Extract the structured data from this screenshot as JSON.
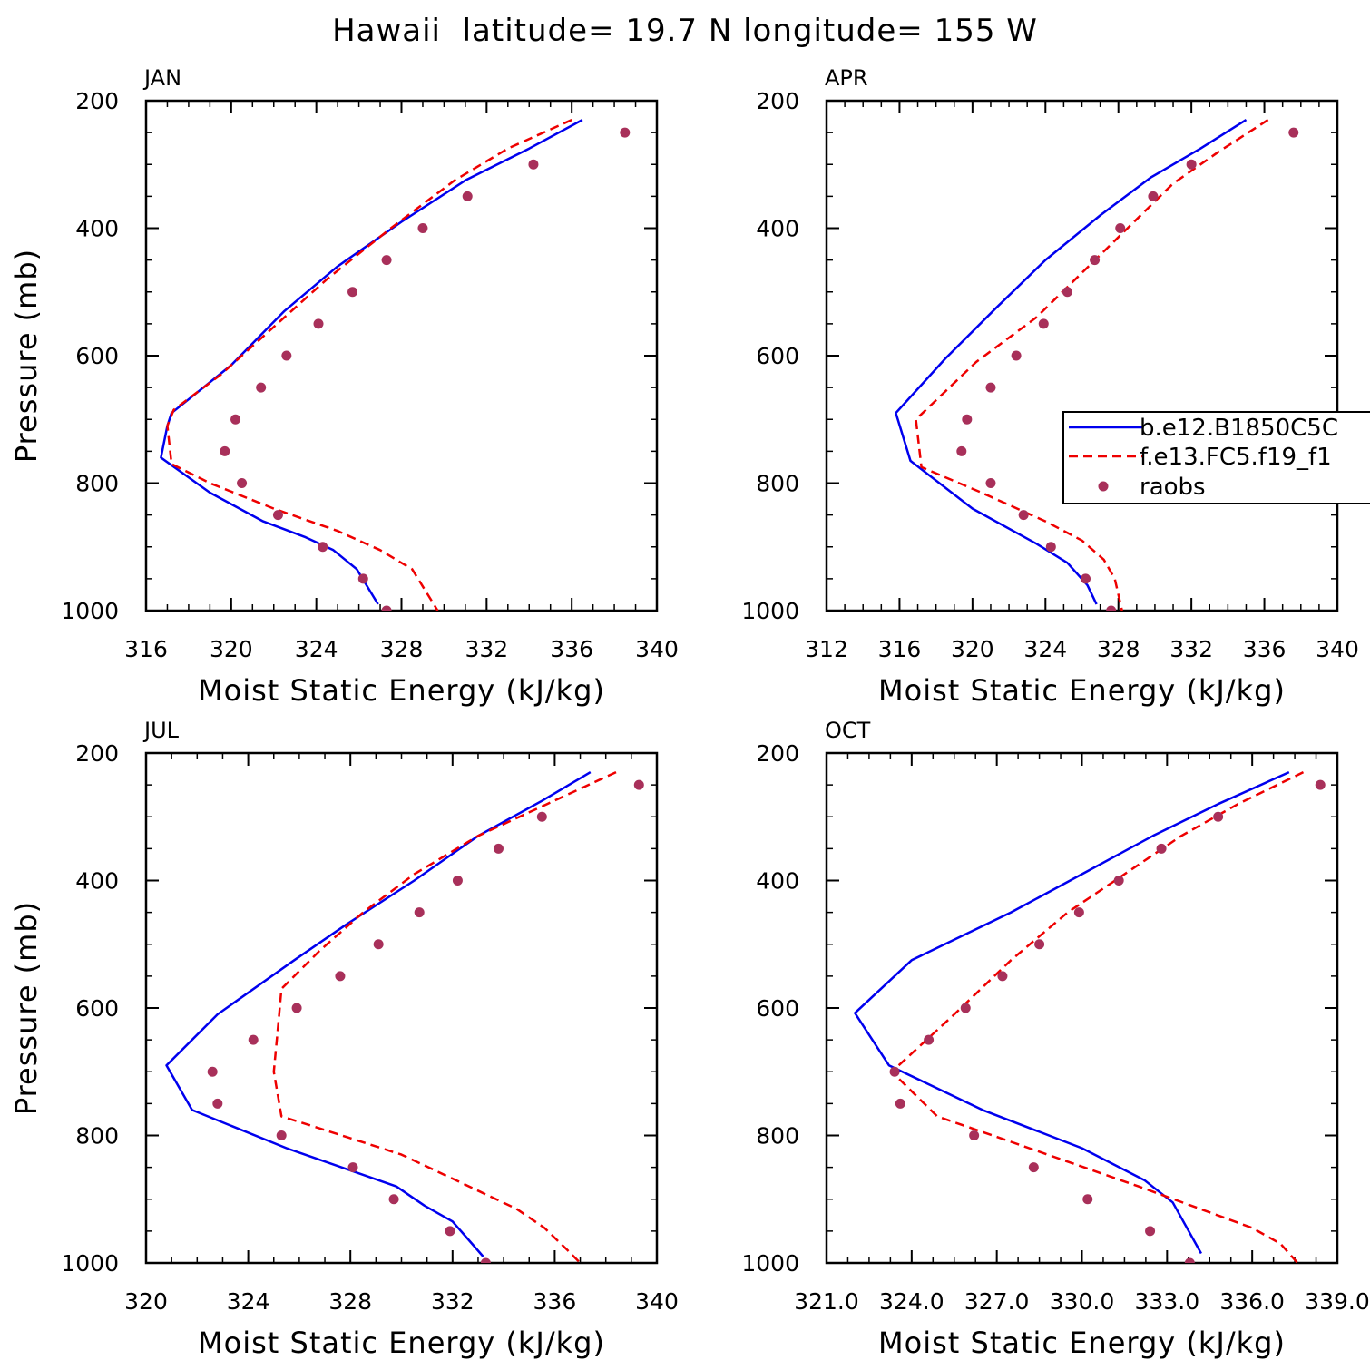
{
  "figure_title": "Hawaii  latitude= 19.7 N longitude= 155 W",
  "legend_entries": [
    "b.e12.B1850C5C",
    "f.e13.FC5.f19_f1",
    "raobs"
  ],
  "colors": {
    "model_b": "#0000ee",
    "model_f": "#ee0000",
    "raobs": "#a8305a"
  },
  "chart_data": [
    {
      "type": "line",
      "title": "JAN",
      "xlabel": "Moist Static Energy (kJ/kg)",
      "ylabel": "Pressure (mb)",
      "xlim": [
        316,
        340
      ],
      "ylim": [
        1000,
        200
      ],
      "xticks": [
        316,
        320,
        324,
        328,
        332,
        336,
        340
      ],
      "xtick_labels": [
        "316",
        "320",
        "324",
        "328",
        "332",
        "336",
        "340"
      ],
      "xminor": 1,
      "yticks": [
        200,
        400,
        600,
        800,
        1000
      ],
      "ytick_labels": [
        "200",
        "400",
        "600",
        "800",
        "1000"
      ],
      "yminor": 50,
      "legend": false,
      "series": [
        {
          "name": "b.e12.B1850C5C",
          "style": "solid",
          "x": [
            336.5,
            334.0,
            331.0,
            328.0,
            325.0,
            322.5,
            320.0,
            317.2,
            317.0,
            316.7,
            319.0,
            321.5,
            323.5,
            324.8,
            325.9,
            326.9
          ],
          "y": [
            230,
            275,
            325,
            390,
            460,
            530,
            615,
            690,
            710,
            760,
            815,
            860,
            885,
            905,
            935,
            990
          ]
        },
        {
          "name": "f.e13.FC5.f19_f1",
          "style": "dashed",
          "x": [
            336.0,
            333.0,
            330.5,
            327.5,
            324.5,
            321.5,
            319.5,
            317.3,
            317.0,
            317.2,
            319.0,
            322.0,
            325.0,
            327.0,
            328.5,
            329.7
          ],
          "y": [
            230,
            275,
            325,
            400,
            480,
            570,
            630,
            685,
            710,
            770,
            800,
            840,
            875,
            905,
            935,
            1000
          ]
        },
        {
          "name": "raobs",
          "style": "markers",
          "x": [
            338.5,
            334.2,
            331.1,
            329.0,
            327.3,
            325.7,
            324.1,
            322.6,
            321.4,
            320.2,
            319.7,
            320.5,
            322.2,
            324.3,
            326.2,
            327.3
          ],
          "y": [
            250,
            300,
            350,
            400,
            450,
            500,
            550,
            600,
            650,
            700,
            750,
            800,
            850,
            900,
            950,
            1000
          ]
        }
      ]
    },
    {
      "type": "line",
      "title": "APR",
      "xlabel": "Moist Static Energy (kJ/kg)",
      "ylabel": "",
      "xlim": [
        312,
        340
      ],
      "ylim": [
        1000,
        200
      ],
      "xticks": [
        312,
        316,
        320,
        324,
        328,
        332,
        336,
        340
      ],
      "xtick_labels": [
        "312",
        "316",
        "320",
        "324",
        "328",
        "332",
        "336",
        "340"
      ],
      "xminor": 1,
      "yticks": [
        200,
        400,
        600,
        800,
        1000
      ],
      "ytick_labels": [
        "200",
        "400",
        "600",
        "800",
        "1000"
      ],
      "yminor": 50,
      "legend": true,
      "series": [
        {
          "name": "b.e12.B1850C5C",
          "style": "solid",
          "x": [
            335.0,
            332.5,
            329.8,
            327.0,
            324.0,
            321.3,
            318.5,
            315.8,
            316.6,
            320.0,
            323.5,
            325.2,
            326.3,
            326.8
          ],
          "y": [
            230,
            275,
            320,
            380,
            450,
            525,
            605,
            690,
            765,
            840,
            895,
            925,
            960,
            990
          ]
        },
        {
          "name": "f.e13.FC5.f19_f1",
          "style": "dashed",
          "x": [
            336.2,
            333.5,
            331.0,
            328.5,
            326.0,
            323.5,
            320.2,
            316.9,
            317.2,
            320.5,
            324.0,
            326.0,
            327.2,
            327.8,
            328.2
          ],
          "y": [
            230,
            280,
            330,
            400,
            470,
            540,
            610,
            700,
            775,
            815,
            860,
            890,
            920,
            950,
            1000
          ]
        },
        {
          "name": "raobs",
          "style": "markers",
          "x": [
            337.6,
            332.0,
            329.9,
            328.1,
            326.7,
            325.2,
            323.9,
            322.4,
            321.0,
            319.7,
            319.4,
            321.0,
            322.8,
            324.3,
            326.2,
            327.6
          ],
          "y": [
            250,
            300,
            350,
            400,
            450,
            500,
            550,
            600,
            650,
            700,
            750,
            800,
            850,
            900,
            950,
            1000
          ]
        }
      ]
    },
    {
      "type": "line",
      "title": "JUL",
      "xlabel": "Moist Static Energy (kJ/kg)",
      "ylabel": "Pressure (mb)",
      "xlim": [
        320,
        340
      ],
      "ylim": [
        1000,
        200
      ],
      "xticks": [
        320,
        324,
        328,
        332,
        336,
        340
      ],
      "xtick_labels": [
        "320",
        "324",
        "328",
        "332",
        "336",
        "340"
      ],
      "xminor": 1,
      "yticks": [
        200,
        400,
        600,
        800,
        1000
      ],
      "ytick_labels": [
        "200",
        "400",
        "600",
        "800",
        "1000"
      ],
      "yminor": 50,
      "legend": false,
      "series": [
        {
          "name": "b.e12.B1850C5C",
          "style": "solid",
          "x": [
            337.4,
            335.5,
            333.0,
            330.5,
            327.8,
            325.8,
            322.8,
            320.8,
            321.8,
            325.5,
            329.8,
            330.9,
            332.0,
            333.2
          ],
          "y": [
            230,
            275,
            330,
            400,
            470,
            525,
            610,
            690,
            760,
            820,
            880,
            910,
            935,
            990
          ]
        },
        {
          "name": "f.e13.FC5.f19_f1",
          "style": "dashed",
          "x": [
            338.4,
            335.7,
            333.0,
            330.5,
            328.5,
            326.8,
            325.3,
            325.2,
            325.0,
            325.3,
            326.5,
            330.0,
            334.5,
            335.6,
            336.5,
            337.0
          ],
          "y": [
            230,
            280,
            330,
            390,
            450,
            510,
            570,
            615,
            700,
            770,
            785,
            830,
            915,
            945,
            980,
            1000
          ]
        },
        {
          "name": "raobs",
          "style": "markers",
          "x": [
            339.3,
            335.5,
            333.8,
            332.2,
            330.7,
            329.1,
            327.6,
            325.9,
            324.2,
            322.6,
            322.8,
            325.3,
            328.1,
            329.7,
            331.9,
            333.3
          ],
          "y": [
            250,
            300,
            350,
            400,
            450,
            500,
            550,
            600,
            650,
            700,
            750,
            800,
            850,
            900,
            950,
            1000
          ]
        }
      ]
    },
    {
      "type": "line",
      "title": "OCT",
      "xlabel": "Moist Static Energy (kJ/kg)",
      "ylabel": "",
      "xlim": [
        321,
        339
      ],
      "ylim": [
        1000,
        200
      ],
      "xticks": [
        321,
        324,
        327,
        330,
        333,
        336,
        339
      ],
      "xtick_labels": [
        "321.0",
        "324.0",
        "327.0",
        "330.0",
        "333.0",
        "336.0",
        "339.0"
      ],
      "xminor": 0.75,
      "yticks": [
        200,
        400,
        600,
        800,
        1000
      ],
      "ytick_labels": [
        "200",
        "400",
        "600",
        "800",
        "1000"
      ],
      "yminor": 50,
      "legend": false,
      "series": [
        {
          "name": "b.e12.B1850C5C",
          "style": "solid",
          "x": [
            337.3,
            334.8,
            332.5,
            330.0,
            327.5,
            324.0,
            322.0,
            323.2,
            326.5,
            330.0,
            332.2,
            333.2,
            334.2
          ],
          "y": [
            230,
            280,
            330,
            390,
            450,
            525,
            608,
            690,
            760,
            820,
            870,
            905,
            985
          ]
        },
        {
          "name": "f.e13.FC5.f19_f1",
          "style": "dashed",
          "x": [
            337.8,
            335.5,
            333.5,
            331.5,
            329.5,
            327.5,
            325.5,
            323.3,
            324.9,
            327.5,
            332.0,
            336.0,
            337.0,
            337.6
          ],
          "y": [
            230,
            280,
            330,
            390,
            450,
            525,
            610,
            700,
            770,
            810,
            880,
            945,
            970,
            1000
          ]
        },
        {
          "name": "raobs",
          "style": "markers",
          "x": [
            338.4,
            334.8,
            332.8,
            331.3,
            329.9,
            328.5,
            327.2,
            325.9,
            324.6,
            323.4,
            323.6,
            326.2,
            328.3,
            330.2,
            332.4,
            333.8
          ],
          "y": [
            250,
            300,
            350,
            400,
            450,
            500,
            550,
            600,
            650,
            700,
            750,
            800,
            850,
            900,
            950,
            1000
          ]
        }
      ]
    }
  ]
}
